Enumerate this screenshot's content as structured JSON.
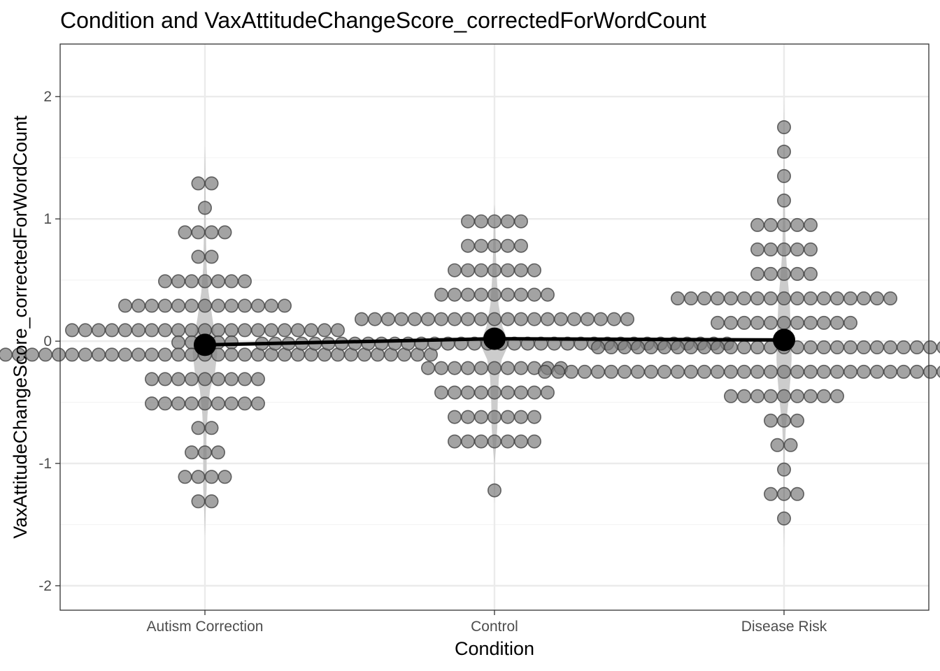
{
  "chart_data": {
    "type": "scatter",
    "title": "Condition and VaxAttitudeChangeScore_correctedForWordCount",
    "xlabel": "Condition",
    "ylabel": "VaxAttitudeChangeScore_correctedForWordCount",
    "categories": [
      "Autism Correction",
      "Control",
      "Disease Risk"
    ],
    "ylim": [
      -2.2,
      2.43
    ],
    "yticks": [
      -2,
      -1,
      0,
      1,
      2
    ],
    "ytick_labels": [
      "-2",
      "-1",
      "0",
      "1",
      "2"
    ],
    "grid": true,
    "legend": "none",
    "colors": {
      "dot_fill": "#808080",
      "dot_stroke": "#3a3a3a",
      "violin": "#cccccc",
      "mean": "#000000",
      "grid_major": "#ebebeb",
      "grid_minor": "#f4f4f4"
    },
    "dot_groups": [
      {
        "category": "Autism Correction",
        "rows": [
          {
            "y": 1.29,
            "n": 2
          },
          {
            "y": 1.09,
            "n": 1
          },
          {
            "y": 0.89,
            "n": 4
          },
          {
            "y": 0.69,
            "n": 2
          },
          {
            "y": 0.49,
            "n": 7
          },
          {
            "y": 0.29,
            "n": 13
          },
          {
            "y": 0.09,
            "n": 21
          },
          {
            "y": -0.01,
            "n": 5
          },
          {
            "y": -0.11,
            "n": 35
          },
          {
            "y": -0.31,
            "n": 9
          },
          {
            "y": -0.51,
            "n": 9
          },
          {
            "y": -0.71,
            "n": 2
          },
          {
            "y": -0.91,
            "n": 3
          },
          {
            "y": -1.11,
            "n": 4
          },
          {
            "y": -1.31,
            "n": 2
          }
        ]
      },
      {
        "category": "Control",
        "rows": [
          {
            "y": 0.98,
            "n": 5
          },
          {
            "y": 0.78,
            "n": 5
          },
          {
            "y": 0.58,
            "n": 7
          },
          {
            "y": 0.38,
            "n": 9
          },
          {
            "y": 0.18,
            "n": 21
          },
          {
            "y": -0.02,
            "n": 36
          },
          {
            "y": -0.22,
            "n": 11
          },
          {
            "y": -0.42,
            "n": 9
          },
          {
            "y": -0.62,
            "n": 7
          },
          {
            "y": -0.82,
            "n": 7
          },
          {
            "y": -1.22,
            "n": 1
          }
        ]
      },
      {
        "category": "Disease Risk",
        "rows": [
          {
            "y": 1.75,
            "n": 1
          },
          {
            "y": 1.55,
            "n": 1
          },
          {
            "y": 1.35,
            "n": 1
          },
          {
            "y": 1.15,
            "n": 1
          },
          {
            "y": 0.95,
            "n": 5
          },
          {
            "y": 0.75,
            "n": 5
          },
          {
            "y": 0.55,
            "n": 5
          },
          {
            "y": 0.35,
            "n": 17
          },
          {
            "y": 0.15,
            "n": 11
          },
          {
            "y": -0.05,
            "n": 29
          },
          {
            "y": -0.25,
            "n": 37
          },
          {
            "y": -0.45,
            "n": 9
          },
          {
            "y": -0.65,
            "n": 3
          },
          {
            "y": -0.85,
            "n": 2
          },
          {
            "y": -1.05,
            "n": 1
          },
          {
            "y": -1.25,
            "n": 3
          },
          {
            "y": -1.45,
            "n": 1
          }
        ]
      }
    ],
    "violins": [
      {
        "category": "Autism Correction",
        "density": [
          [
            -1.6,
            0.0
          ],
          [
            -1.4,
            0.05
          ],
          [
            -1.2,
            0.12
          ],
          [
            -1.0,
            0.12
          ],
          [
            -0.8,
            0.1
          ],
          [
            -0.6,
            0.18
          ],
          [
            -0.4,
            0.35
          ],
          [
            -0.25,
            0.7
          ],
          [
            -0.1,
            0.85
          ],
          [
            0.05,
            0.7
          ],
          [
            0.2,
            0.5
          ],
          [
            0.4,
            0.25
          ],
          [
            0.6,
            0.12
          ],
          [
            0.8,
            0.08
          ],
          [
            1.0,
            0.06
          ],
          [
            1.2,
            0.05
          ],
          [
            1.45,
            0.03
          ],
          [
            1.6,
            0.0
          ]
        ]
      },
      {
        "category": "Control",
        "density": [
          [
            -1.33,
            0.0
          ],
          [
            -1.2,
            0.03
          ],
          [
            -1.0,
            0.02
          ],
          [
            -0.9,
            0.08
          ],
          [
            -0.7,
            0.2
          ],
          [
            -0.5,
            0.22
          ],
          [
            -0.3,
            0.3
          ],
          [
            -0.15,
            0.5
          ],
          [
            -0.02,
            1.0
          ],
          [
            0.12,
            0.55
          ],
          [
            0.3,
            0.28
          ],
          [
            0.5,
            0.17
          ],
          [
            0.7,
            0.1
          ],
          [
            0.9,
            0.07
          ],
          [
            1.05,
            0.04
          ],
          [
            1.12,
            0.0
          ]
        ]
      },
      {
        "category": "Disease Risk",
        "density": [
          [
            -1.7,
            0.0
          ],
          [
            -1.5,
            0.03
          ],
          [
            -1.3,
            0.05
          ],
          [
            -1.1,
            0.05
          ],
          [
            -0.9,
            0.06
          ],
          [
            -0.7,
            0.12
          ],
          [
            -0.5,
            0.3
          ],
          [
            -0.3,
            0.45
          ],
          [
            -0.15,
            0.52
          ],
          [
            0.0,
            0.5
          ],
          [
            0.15,
            0.45
          ],
          [
            0.35,
            0.38
          ],
          [
            0.55,
            0.22
          ],
          [
            0.75,
            0.12
          ],
          [
            0.95,
            0.08
          ],
          [
            1.2,
            0.05
          ],
          [
            1.5,
            0.03
          ],
          [
            1.8,
            0.02
          ],
          [
            2.0,
            0.0
          ]
        ]
      }
    ],
    "means": [
      {
        "category": "Autism Correction",
        "y": -0.03
      },
      {
        "category": "Control",
        "y": 0.02
      },
      {
        "category": "Disease Risk",
        "y": 0.01
      }
    ]
  }
}
